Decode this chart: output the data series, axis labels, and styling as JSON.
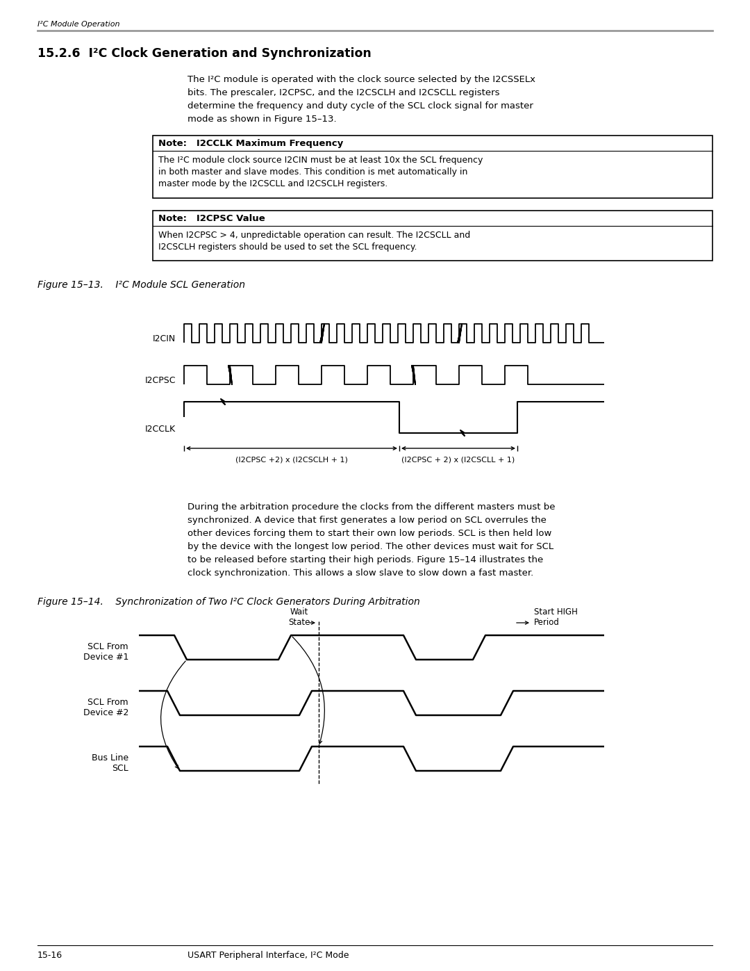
{
  "page_bg": "#ffffff",
  "header_text": "I²C Module Operation",
  "section_title": "15.2.6  I²C Clock Generation and Synchronization",
  "body_text1_line1": "The I²C module is operated with the clock source selected by the I2CSSELx",
  "body_text1_line2": "bits. The prescaler, I2CPSC, and the I2CSCLH and I2CSCLL registers",
  "body_text1_line3": "determine the frequency and duty cycle of the SCL clock signal for master",
  "body_text1_line4": "mode as shown in Figure 15–13.",
  "note1_title": "Note:   I2CCLK Maximum Frequency",
  "note1_line1": "The I²C module clock source I2CIN must be at least 10x the SCL frequency",
  "note1_line2": "in both master and slave modes. This condition is met automatically in",
  "note1_line3": "master mode by the I2CSCLL and I2CSCLH registers.",
  "note2_title": "Note:   I2CPSC Value",
  "note2_line1": "When I2CPSC > 4, unpredictable operation can result. The I2CSCLL and",
  "note2_line2": "I2CSCLH registers should be used to set the SCL frequency.",
  "fig13_caption": "Figure 15–13.    I²C Module SCL Generation",
  "fig14_caption": "Figure 15–14.    Synchronization of Two I²C Clock Generators During Arbitration",
  "body_text2_line1": "During the arbitration procedure the clocks from the different masters must be",
  "body_text2_line2": "synchronized. A device that first generates a low period on SCL overrules the",
  "body_text2_line3": "other devices forcing them to start their own low periods. SCL is then held low",
  "body_text2_line4": "by the device with the longest low period. The other devices must wait for SCL",
  "body_text2_line5": "to be released before starting their high periods. Figure 15–14 illustrates the",
  "body_text2_line6": "clock synchronization. This allows a slow slave to slow down a fast master.",
  "footer_left": "15-16",
  "footer_right": "USART Peripheral Interface, I²C Mode",
  "text_color": "#000000",
  "header_line_color": "#999999",
  "lm": 54,
  "rm": 1026,
  "indent": 270
}
